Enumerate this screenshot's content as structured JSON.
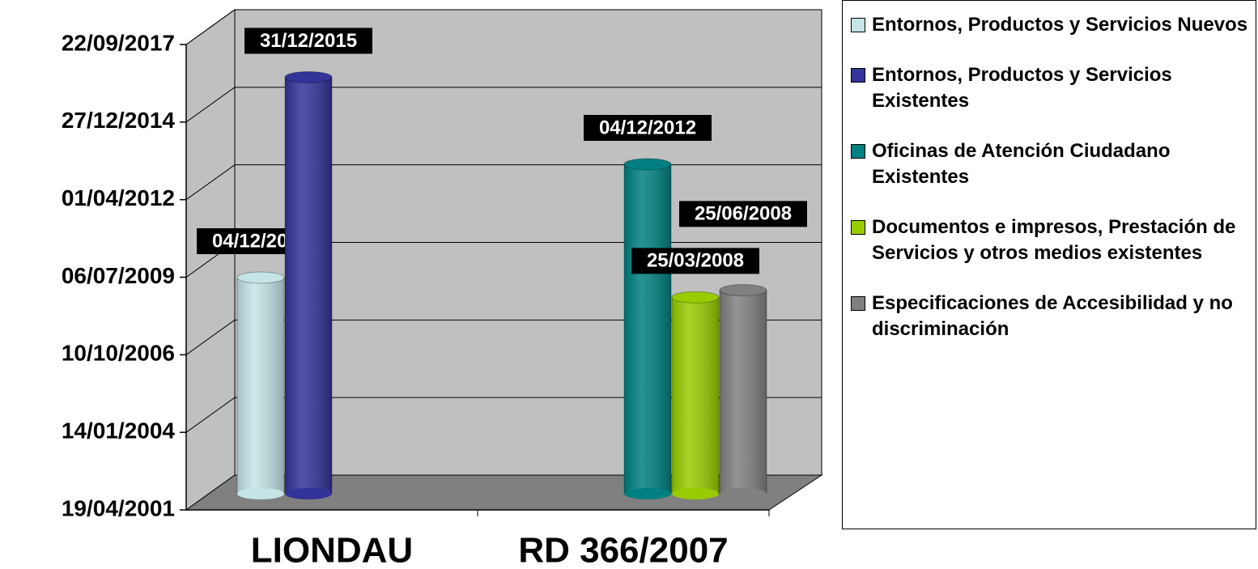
{
  "chart_data": {
    "type": "bar3d",
    "categories": [
      "LIONDAU",
      "RD 366/2007"
    ],
    "series": [
      {
        "name": "Entornos, Productos y Servicios Nuevos",
        "color": "#c4e4e6",
        "values": [
          "04/12/2008",
          null
        ]
      },
      {
        "name": "Entornos, Productos y Servicios Existentes",
        "color": "#333399",
        "values": [
          "31/12/2015",
          null
        ]
      },
      {
        "name": "Oficinas de Atención Ciudadano Existentes",
        "color": "#008080",
        "values": [
          null,
          "04/12/2012"
        ]
      },
      {
        "name": "Documentos e impresos, Prestación de Servicios y otros medios existentes",
        "color": "#99cc00",
        "values": [
          null,
          "25/03/2008"
        ]
      },
      {
        "name": "Especificaciones de Accesibilidad y no discriminación",
        "color": "#808080",
        "values": [
          null,
          "25/06/2008"
        ]
      }
    ],
    "ylim": [
      "19/04/2001",
      "22/09/2017"
    ],
    "yticks": [
      "19/04/2001",
      "14/01/2004",
      "10/10/2006",
      "06/07/2009",
      "01/04/2012",
      "27/12/2014",
      "22/09/2017"
    ],
    "grid": true,
    "legend": "right"
  }
}
